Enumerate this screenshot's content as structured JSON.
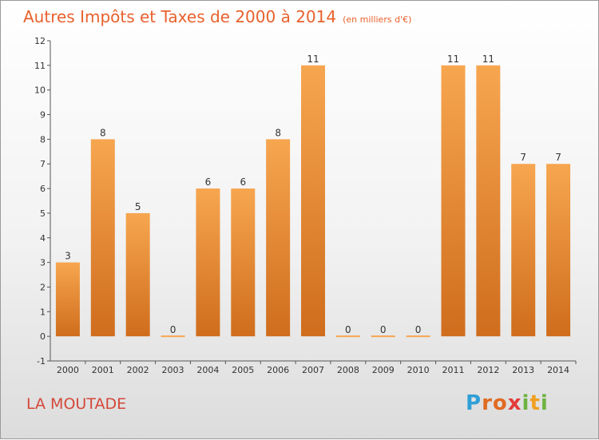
{
  "chart_data": {
    "type": "bar",
    "title": "Autres Impôts et Taxes de 2000 à 2014",
    "subtitle": "(en milliers d'€)",
    "categories": [
      "2000",
      "2001",
      "2002",
      "2003",
      "2004",
      "2005",
      "2006",
      "2007",
      "2008",
      "2009",
      "2010",
      "2011",
      "2012",
      "2013",
      "2014"
    ],
    "values": [
      3,
      8,
      5,
      0,
      6,
      6,
      8,
      11,
      0,
      0,
      0,
      11,
      11,
      7,
      7
    ],
    "data_labels": [
      "3",
      "8",
      "5",
      "0",
      "6",
      "6",
      "8",
      "11",
      "0",
      "0",
      "0",
      "11",
      "11",
      "7",
      "7"
    ],
    "ylim": [
      -1,
      12
    ],
    "yticks": [
      "-1",
      "0",
      "1",
      "2",
      "3",
      "4",
      "5",
      "6",
      "7",
      "8",
      "9",
      "10",
      "11",
      "12"
    ],
    "grid": false,
    "colors": {
      "bar_top": "#f7a650",
      "bar_bottom": "#cf6d1d",
      "title": "#e8612c"
    }
  },
  "footer": {
    "place": "LA MOUTADE",
    "logo_letters": [
      "P",
      "r",
      "o",
      "x",
      "i",
      "t",
      "i"
    ],
    "logo_colors": [
      "#2f9fd8",
      "#e06b23",
      "#e06b23",
      "#e23b3b",
      "#6db33f",
      "#f0a020",
      "#6db33f"
    ]
  }
}
